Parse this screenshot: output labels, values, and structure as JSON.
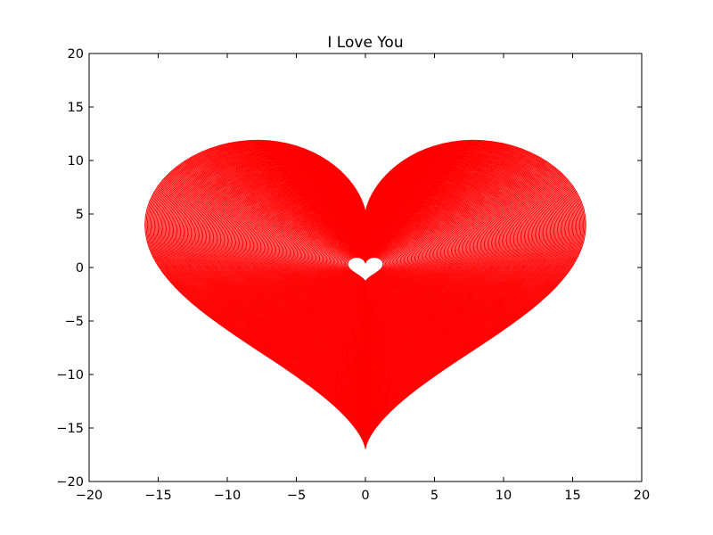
{
  "chart_data": {
    "type": "line",
    "title": "I Love You",
    "xlabel": "",
    "ylabel": "",
    "xlim": [
      -20,
      20
    ],
    "ylim": [
      -20,
      20
    ],
    "xticks": [
      -20,
      -15,
      -10,
      -5,
      0,
      5,
      10,
      15,
      20
    ],
    "yticks": [
      -20,
      -15,
      -10,
      -5,
      0,
      5,
      10,
      15,
      20
    ],
    "xtick_labels": [
      "−20",
      "−15",
      "−10",
      "−5",
      "0",
      "5",
      "10",
      "15",
      "20"
    ],
    "ytick_labels": [
      "−20",
      "−15",
      "−10",
      "−5",
      "0",
      "5",
      "10",
      "15",
      "20"
    ],
    "grid": false,
    "legend": "none",
    "line_color": "#ff0000",
    "series": [
      {
        "curve": "heart",
        "scales": [
          0.08,
          0.08533,
          0.09067,
          0.096,
          0.10133,
          0.10667,
          0.112,
          0.11733,
          0.12267,
          0.128,
          0.13333,
          0.13867,
          0.144,
          0.14933,
          0.15467,
          0.16,
          0.16533,
          0.17067,
          0.176,
          0.18133,
          0.18667,
          0.192,
          0.19733,
          0.20267,
          0.208,
          0.21333,
          0.21867,
          0.224,
          0.22933,
          0.23467,
          0.24,
          0.24533,
          0.25067,
          0.256,
          0.26133,
          0.26667,
          0.272,
          0.27733,
          0.28267,
          0.288,
          0.29333,
          0.29867,
          0.304,
          0.30933,
          0.31467,
          0.32,
          0.32533,
          0.33067,
          0.336,
          0.34133,
          0.34667,
          0.352,
          0.35733,
          0.36267,
          0.368,
          0.37333,
          0.37867,
          0.384,
          0.38933,
          0.39467,
          0.4,
          0.40533,
          0.41067,
          0.416,
          0.42133,
          0.42667,
          0.432,
          0.43733,
          0.44267,
          0.448,
          0.45333,
          0.45867,
          0.464,
          0.46933,
          0.47467,
          0.48,
          0.48533,
          0.49067,
          0.496,
          0.50133,
          0.50667,
          0.512,
          0.51733,
          0.52267,
          0.528,
          0.53333,
          0.53867,
          0.544,
          0.54933,
          0.55467,
          0.56,
          0.56533,
          0.57067,
          0.576,
          0.58133,
          0.58667,
          0.592,
          0.59733,
          0.60267,
          0.608,
          0.61333,
          0.61867,
          0.624,
          0.62933,
          0.63467,
          0.64,
          0.64533,
          0.65067,
          0.656,
          0.66133,
          0.66667,
          0.672,
          0.67733,
          0.68267,
          0.688,
          0.69333,
          0.69867,
          0.704,
          0.70933,
          0.71467,
          0.72,
          0.72533,
          0.73067,
          0.736,
          0.74133,
          0.74667,
          0.752,
          0.75733,
          0.76267,
          0.768,
          0.77333,
          0.77867,
          0.784,
          0.78933,
          0.79467,
          0.8,
          0.80533,
          0.81067,
          0.816,
          0.82133,
          0.82667,
          0.832,
          0.83733,
          0.84267,
          0.848,
          0.85333,
          0.85867,
          0.864,
          0.86933,
          0.87467,
          0.88,
          0.88533,
          0.89067,
          0.896,
          0.90133,
          0.90667,
          0.912,
          0.91733,
          0.92267,
          0.928,
          0.93333,
          0.93867,
          0.944,
          0.94933,
          0.95467,
          0.96,
          0.96533,
          0.97067,
          0.976,
          0.98133,
          0.98667,
          0.992,
          0.99733
        ]
      }
    ]
  }
}
